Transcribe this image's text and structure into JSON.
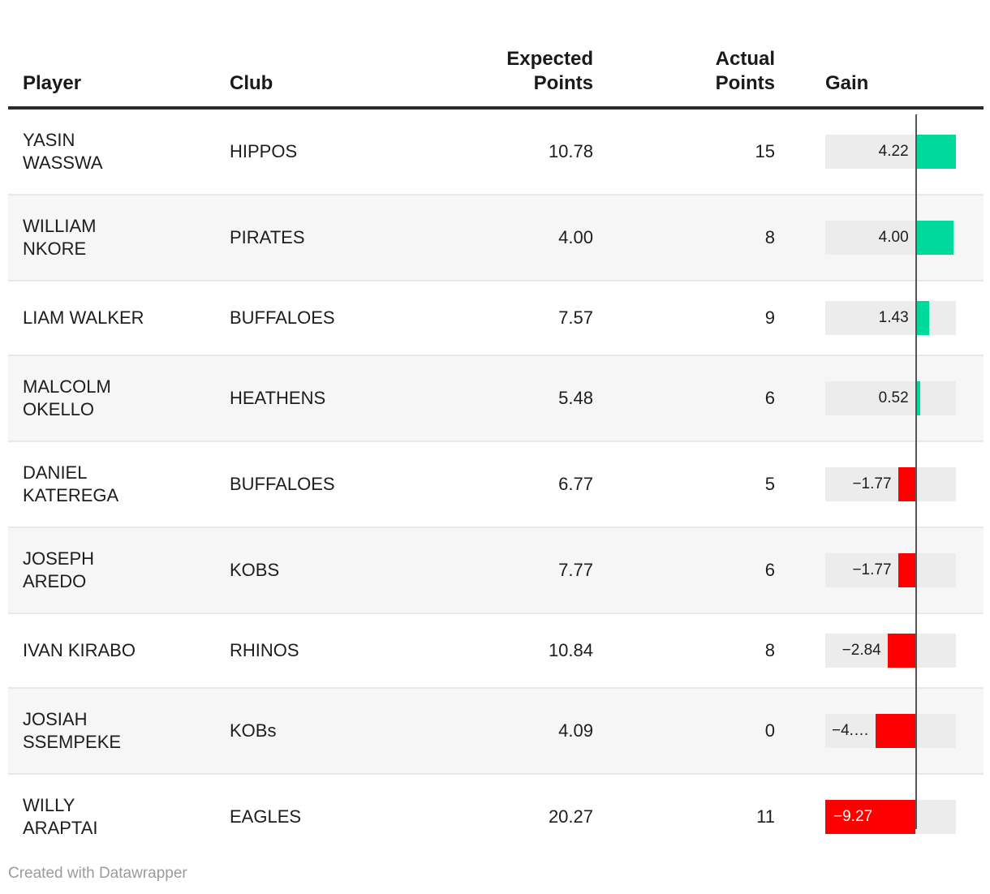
{
  "header": {
    "columns": [
      {
        "id": "player",
        "label": "Player",
        "label_lines": [
          "Player"
        ]
      },
      {
        "id": "club",
        "label": "Club",
        "label_lines": [
          "Club"
        ]
      },
      {
        "id": "expected",
        "label": "Expected Points",
        "label_lines": [
          "Expected",
          "Points"
        ]
      },
      {
        "id": "actual",
        "label": "Actual Points",
        "label_lines": [
          "Actual",
          "Points"
        ]
      },
      {
        "id": "gain",
        "label": "Gain",
        "label_lines": [
          "Gain"
        ]
      }
    ]
  },
  "rows": [
    {
      "player": "YASIN WASSWA",
      "player_lines": [
        "YASIN",
        "WASSWA"
      ],
      "club": "HIPPOS",
      "expected": "10.78",
      "actual": "15",
      "gain": 4.22,
      "gain_display": "4.22",
      "gain_label_placement": "outside",
      "striped": false
    },
    {
      "player": "WILLIAM NKORE",
      "player_lines": [
        "WILLIAM",
        "NKORE"
      ],
      "club": "PIRATES",
      "expected": "4.00",
      "actual": "8",
      "gain": 4.0,
      "gain_display": "4.00",
      "gain_label_placement": "outside",
      "striped": true
    },
    {
      "player": "LIAM WALKER",
      "player_lines": [
        "LIAM WALKER"
      ],
      "club": "BUFFALOES",
      "expected": "7.57",
      "actual": "9",
      "gain": 1.43,
      "gain_display": "1.43",
      "gain_label_placement": "outside",
      "striped": false
    },
    {
      "player": "MALCOLM OKELLO",
      "player_lines": [
        "MALCOLM",
        "OKELLO"
      ],
      "club": "HEATHENS",
      "expected": "5.48",
      "actual": "6",
      "gain": 0.52,
      "gain_display": "0.52",
      "gain_label_placement": "outside",
      "striped": true
    },
    {
      "player": "DANIEL KATEREGA",
      "player_lines": [
        "DANIEL",
        "KATEREGA"
      ],
      "club": "BUFFALOES",
      "expected": "6.77",
      "actual": "5",
      "gain": -1.77,
      "gain_display": "−1.77",
      "gain_label_placement": "outside",
      "striped": false
    },
    {
      "player": "JOSEPH AREDO",
      "player_lines": [
        "JOSEPH",
        "AREDO"
      ],
      "club": "KOBS",
      "expected": "7.77",
      "actual": "6",
      "gain": -1.77,
      "gain_display": "−1.77",
      "gain_label_placement": "outside",
      "striped": true
    },
    {
      "player": "IVAN KIRABO",
      "player_lines": [
        "IVAN KIRABO"
      ],
      "club": "RHINOS",
      "expected": "10.84",
      "actual": "8",
      "gain": -2.84,
      "gain_display": "−2.84",
      "gain_label_placement": "outside",
      "striped": false
    },
    {
      "player": "JOSIAH SSEMPEKE",
      "player_lines": [
        "JOSIAH",
        "SSEMPEKE"
      ],
      "club": "KOBs",
      "expected": "4.09",
      "actual": "0",
      "gain": -4.09,
      "gain_display": "−4.…",
      "gain_label_placement": "trunc-left",
      "striped": true
    },
    {
      "player": "WILLY ARAPTAI",
      "player_lines": [
        "WILLY",
        "ARAPTAI"
      ],
      "club": "EAGLES",
      "expected": "20.27",
      "actual": "11",
      "gain": -9.27,
      "gain_display": "−9.27",
      "gain_label_placement": "inside",
      "striped": false
    }
  ],
  "gain_axis": {
    "min": -9.27,
    "max": 4.22
  },
  "colors": {
    "positive_bar": "#00d99c",
    "negative_bar": "#ff0000",
    "bar_track": "#ececec",
    "row_stripe": "#f6f6f6",
    "zero_line": "#555555",
    "header_rule": "#2b2b2b",
    "text": "#1d1d1d",
    "footer_text": "#9b9b9b"
  },
  "footer": {
    "credit": "Created with Datawrapper"
  },
  "chart_data": {
    "type": "table",
    "title": "",
    "columns": [
      "Player",
      "Club",
      "Expected Points",
      "Actual Points",
      "Gain"
    ],
    "rows": [
      [
        "YASIN WASSWA",
        "HIPPOS",
        10.78,
        15,
        4.22
      ],
      [
        "WILLIAM NKORE",
        "PIRATES",
        4.0,
        8,
        4.0
      ],
      [
        "LIAM WALKER",
        "BUFFALOES",
        7.57,
        9,
        1.43
      ],
      [
        "MALCOLM OKELLO",
        "HEATHENS",
        5.48,
        6,
        0.52
      ],
      [
        "DANIEL KATEREGA",
        "BUFFALOES",
        6.77,
        5,
        -1.77
      ],
      [
        "JOSEPH AREDO",
        "KOBS",
        7.77,
        6,
        -1.77
      ],
      [
        "IVAN KIRABO",
        "RHINOS",
        10.84,
        8,
        -2.84
      ],
      [
        "JOSIAH SSEMPEKE",
        "KOBs",
        4.09,
        0,
        -4.09
      ],
      [
        "WILLY ARAPTAI",
        "EAGLES",
        20.27,
        11,
        -9.27
      ]
    ],
    "embedded_bar_column": "Gain",
    "bar_axis_range": [
      -9.27,
      4.22
    ],
    "positive_color": "#00d99c",
    "negative_color": "#ff0000"
  }
}
